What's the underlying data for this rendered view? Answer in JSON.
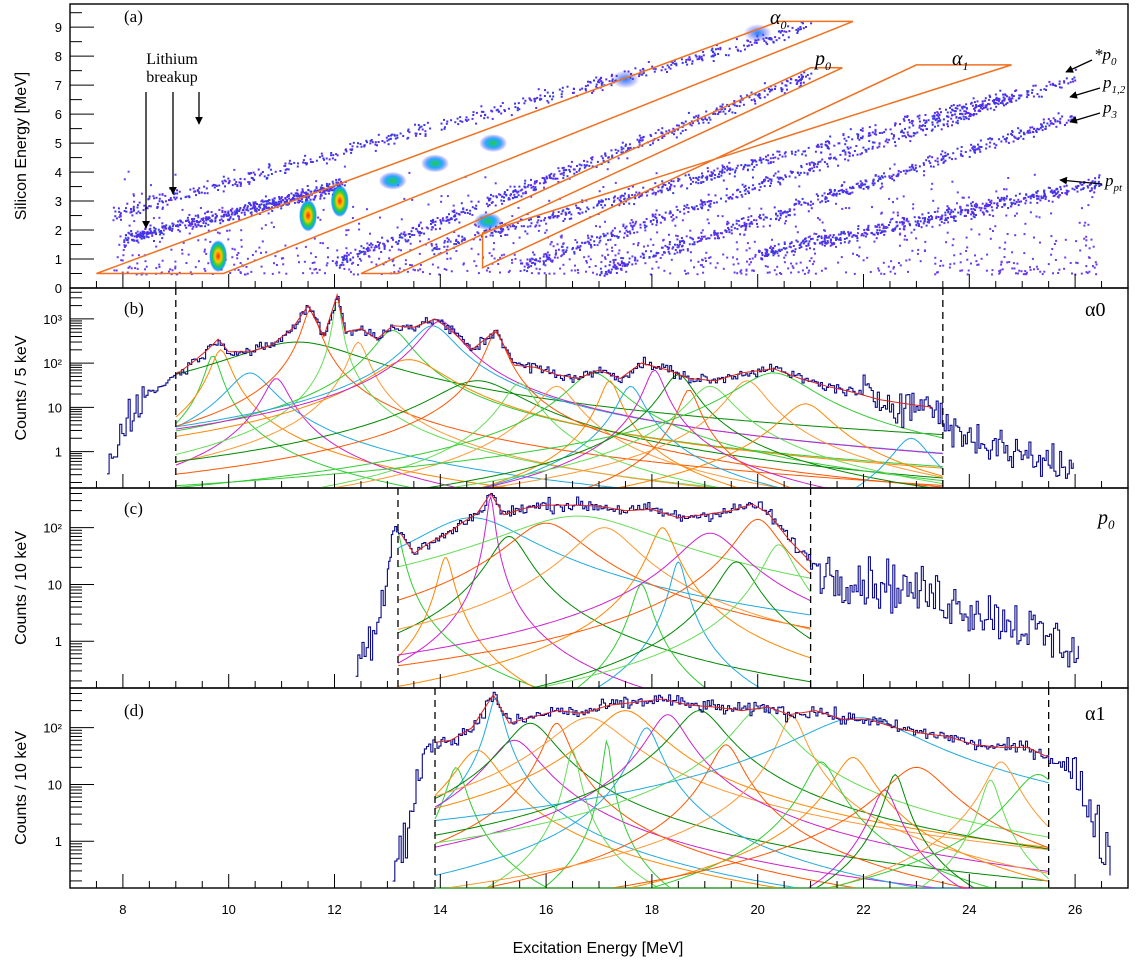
{
  "figure": {
    "xlabel": "Excitation Energy [MeV]",
    "x_ticks": [
      8,
      10,
      12,
      14,
      16,
      18,
      20,
      22,
      24,
      26
    ]
  },
  "chart_data": [
    {
      "type": "heatmap",
      "panel_label": "(a)",
      "xlabel": "Excitation Energy [MeV]",
      "ylabel": "Silicon Energy [MeV]",
      "xlim": [
        7,
        27
      ],
      "ylim": [
        0,
        9.8
      ],
      "y_ticks": [
        0,
        1,
        2,
        3,
        4,
        5,
        6,
        7,
        8,
        9
      ],
      "loci": [
        {
          "name": "Lithium breakup",
          "x_range": [
            8.0,
            12.2
          ],
          "y_at_start": 1.7,
          "slope": 0.45
        },
        {
          "name": "α0",
          "x_range": [
            7.8,
            21.0
          ],
          "y_at_start": 2.6,
          "slope": 0.49
        },
        {
          "name": "p0",
          "x_range": [
            12.0,
            21.0
          ],
          "y_at_start": 0.9,
          "slope": 0.72
        },
        {
          "name": "α1",
          "x_range": [
            13.8,
            24.8
          ],
          "y_at_start": 1.4,
          "slope": 0.48
        },
        {
          "name": "p1,2",
          "x_range": [
            15.5,
            26.0
          ],
          "y_at_start": 0.8,
          "slope": 0.62
        },
        {
          "name": "p3",
          "x_range": [
            17.0,
            26.0
          ],
          "y_at_start": 0.6,
          "slope": 0.6
        },
        {
          "name": "p_pt",
          "x_range": [
            20.0,
            26.5
          ],
          "y_at_start": 1.2,
          "slope": 0.38
        }
      ],
      "hotspots": [
        {
          "x": 9.8,
          "y": 1.1,
          "intensity": "high"
        },
        {
          "x": 11.5,
          "y": 2.5,
          "intensity": "high"
        },
        {
          "x": 12.1,
          "y": 3.0,
          "intensity": "high"
        },
        {
          "x": 13.1,
          "y": 3.7,
          "intensity": "medium"
        },
        {
          "x": 13.9,
          "y": 4.3,
          "intensity": "medium"
        },
        {
          "x": 15.0,
          "y": 5.0,
          "intensity": "medium"
        },
        {
          "x": 14.9,
          "y": 2.3,
          "intensity": "medium"
        },
        {
          "x": 17.5,
          "y": 7.2,
          "intensity": "low"
        },
        {
          "x": 20.0,
          "y": 8.8,
          "intensity": "low"
        }
      ],
      "gates": [
        {
          "name": "α0",
          "polygon": [
            [
              7.5,
              0.5
            ],
            [
              20.4,
              9.2
            ],
            [
              21.8,
              9.2
            ],
            [
              9.9,
              0.5
            ]
          ]
        },
        {
          "name": "p0",
          "polygon": [
            [
              12.5,
              0.5
            ],
            [
              21.0,
              7.6
            ],
            [
              21.6,
              7.6
            ],
            [
              13.2,
              0.5
            ]
          ]
        },
        {
          "name": "α1",
          "polygon": [
            [
              14.8,
              0.7
            ],
            [
              23.0,
              7.7
            ],
            [
              24.8,
              7.7
            ],
            [
              14.8,
              1.9
            ]
          ]
        }
      ],
      "annotations": [
        {
          "text": "Lithium",
          "x": 9.0,
          "y": 8.3
        },
        {
          "text": "breakup",
          "x": 9.0,
          "y": 7.8
        },
        {
          "text": "α",
          "sub": "0",
          "x": 20.0,
          "y": 9.2
        },
        {
          "text": "p",
          "sub": "0",
          "x": 20.6,
          "y": 7.8
        },
        {
          "text": "α",
          "sub": "1",
          "x": 23.4,
          "y": 7.8
        },
        {
          "text": "*p",
          "sub": "0",
          "x": 26.4,
          "y": 8.0
        },
        {
          "text": "p",
          "sub": "1,2",
          "x": 26.4,
          "y": 7.0
        },
        {
          "text": "p",
          "sub": "3",
          "x": 26.4,
          "y": 6.1
        },
        {
          "text": "p",
          "sub": "pt",
          "x": 26.4,
          "y": 3.0
        }
      ]
    },
    {
      "type": "line",
      "panel_label": "(b)",
      "channel": "α0",
      "ylabel": "Counts / 5 keV",
      "xlim": [
        7,
        27
      ],
      "yscale": "log",
      "ylim": [
        0.15,
        5000
      ],
      "y_tick_values": [
        1,
        10,
        100,
        1000
      ],
      "y_tick_labels": [
        "1",
        "10",
        "10²",
        "10³"
      ],
      "fit_range": [
        9.0,
        23.5
      ],
      "data": {
        "x": [
          7.7,
          7.9,
          8.1,
          8.4,
          8.7,
          9.0,
          9.3,
          9.6,
          9.8,
          10.0,
          10.4,
          10.8,
          11.2,
          11.5,
          11.8,
          12.05,
          12.2,
          12.5,
          12.8,
          13.1,
          13.5,
          13.9,
          14.2,
          14.6,
          15.05,
          15.4,
          15.8,
          16.2,
          16.6,
          17.0,
          17.4,
          17.8,
          18.3,
          18.7,
          19.2,
          19.7,
          20.3,
          20.8,
          21.3,
          21.8,
          22.3,
          22.8,
          23.3,
          23.6,
          24.0,
          24.4,
          24.8,
          25.2,
          25.6,
          26.0
        ],
        "y": [
          0.3,
          2,
          8,
          18,
          30,
          55,
          100,
          200,
          350,
          180,
          180,
          250,
          600,
          2000,
          400,
          3500,
          500,
          600,
          350,
          700,
          650,
          1000,
          550,
          200,
          550,
          90,
          80,
          55,
          45,
          70,
          45,
          100,
          70,
          45,
          40,
          60,
          75,
          45,
          30,
          22,
          15,
          12,
          10,
          4,
          2,
          1.5,
          1,
          0.8,
          0.5,
          0.4
        ]
      },
      "components": [
        {
          "center": 9.7,
          "height": 150,
          "width": 0.12
        },
        {
          "center": 9.85,
          "height": 200,
          "width": 0.15
        },
        {
          "center": 10.4,
          "height": 60,
          "width": 0.35
        },
        {
          "center": 10.9,
          "height": 45,
          "width": 0.2
        },
        {
          "center": 11.3,
          "height": 300,
          "width": 1.1
        },
        {
          "center": 11.55,
          "height": 1700,
          "width": 0.12
        },
        {
          "center": 12.05,
          "height": 3200,
          "width": 0.05
        },
        {
          "center": 12.45,
          "height": 300,
          "width": 0.15
        },
        {
          "center": 13.1,
          "height": 550,
          "width": 0.3
        },
        {
          "center": 13.4,
          "height": 120,
          "width": 0.6
        },
        {
          "center": 13.85,
          "height": 700,
          "width": 0.35
        },
        {
          "center": 14.0,
          "height": 900,
          "width": 0.3
        },
        {
          "center": 14.7,
          "height": 40,
          "width": 0.7
        },
        {
          "center": 15.05,
          "height": 500,
          "width": 0.15
        },
        {
          "center": 15.5,
          "height": 35,
          "width": 0.25
        },
        {
          "center": 16.2,
          "height": 30,
          "width": 0.3
        },
        {
          "center": 16.9,
          "height": 60,
          "width": 0.4
        },
        {
          "center": 17.2,
          "height": 40,
          "width": 0.15
        },
        {
          "center": 17.6,
          "height": 30,
          "width": 0.2
        },
        {
          "center": 18.05,
          "height": 70,
          "width": 0.15
        },
        {
          "center": 18.5,
          "height": 55,
          "width": 0.25
        },
        {
          "center": 18.7,
          "height": 25,
          "width": 0.15
        },
        {
          "center": 19.1,
          "height": 30,
          "width": 0.35
        },
        {
          "center": 19.8,
          "height": 40,
          "width": 0.3
        },
        {
          "center": 20.3,
          "height": 60,
          "width": 0.6
        },
        {
          "center": 20.9,
          "height": 12,
          "width": 0.4
        },
        {
          "center": 22.9,
          "height": 2,
          "width": 0.3
        }
      ]
    },
    {
      "type": "line",
      "panel_label": "(c)",
      "channel": "p0",
      "ylabel": "Counts / 10 keV",
      "xlim": [
        7,
        27
      ],
      "yscale": "log",
      "ylim": [
        0.15,
        500
      ],
      "y_tick_values": [
        1,
        10,
        100
      ],
      "y_tick_labels": [
        "1",
        "10",
        "10²"
      ],
      "fit_range": [
        13.2,
        21.0
      ],
      "data": {
        "x": [
          12.4,
          12.6,
          12.8,
          13.0,
          13.1,
          13.25,
          13.5,
          13.8,
          14.1,
          14.4,
          14.7,
          14.95,
          15.2,
          15.6,
          16.0,
          16.5,
          17.0,
          17.5,
          18.0,
          18.5,
          19.0,
          19.5,
          19.9,
          20.2,
          20.6,
          21.0,
          21.4,
          21.9,
          22.4,
          22.9,
          23.4,
          23.9,
          24.4,
          24.9,
          25.4,
          25.9,
          26.1
        ],
        "y": [
          0.3,
          1,
          3,
          15,
          110,
          80,
          35,
          55,
          75,
          120,
          180,
          400,
          170,
          220,
          250,
          250,
          240,
          200,
          210,
          150,
          170,
          200,
          260,
          180,
          60,
          25,
          15,
          12,
          10,
          8,
          6,
          4,
          3,
          2,
          1.2,
          0.8,
          0.5
        ]
      },
      "components": [
        {
          "center": 13.15,
          "height": 110,
          "width": 0.1
        },
        {
          "center": 14.1,
          "height": 30,
          "width": 0.12
        },
        {
          "center": 14.6,
          "height": 150,
          "width": 0.9
        },
        {
          "center": 14.95,
          "height": 350,
          "width": 0.06
        },
        {
          "center": 15.3,
          "height": 70,
          "width": 0.3
        },
        {
          "center": 16.0,
          "height": 120,
          "width": 0.6
        },
        {
          "center": 16.6,
          "height": 160,
          "width": 1.3
        },
        {
          "center": 17.1,
          "height": 100,
          "width": 0.5
        },
        {
          "center": 17.8,
          "height": 10,
          "width": 0.15
        },
        {
          "center": 18.2,
          "height": 100,
          "width": 0.2
        },
        {
          "center": 18.5,
          "height": 25,
          "width": 0.12
        },
        {
          "center": 19.1,
          "height": 80,
          "width": 0.5
        },
        {
          "center": 19.6,
          "height": 25,
          "width": 0.3
        },
        {
          "center": 20.0,
          "height": 140,
          "width": 0.35
        },
        {
          "center": 20.4,
          "height": 50,
          "width": 0.25
        }
      ]
    },
    {
      "type": "line",
      "panel_label": "(d)",
      "channel": "α1",
      "ylabel": "Counts / 10 keV",
      "xlim": [
        7,
        27
      ],
      "yscale": "log",
      "ylim": [
        0.15,
        500
      ],
      "y_tick_values": [
        1,
        10,
        100
      ],
      "y_tick_labels": [
        "1",
        "10",
        "10²"
      ],
      "fit_range": [
        13.9,
        25.5
      ],
      "data": {
        "x": [
          13.1,
          13.3,
          13.5,
          13.7,
          13.9,
          14.2,
          14.6,
          15.0,
          15.3,
          15.7,
          16.2,
          16.7,
          17.2,
          17.7,
          18.2,
          18.7,
          19.2,
          19.7,
          20.2,
          20.6,
          21.1,
          21.6,
          22.1,
          22.6,
          23.1,
          23.6,
          24.1,
          24.6,
          25.1,
          25.5,
          25.8,
          26.1,
          26.3,
          26.5,
          26.7
        ],
        "y": [
          0.3,
          1,
          5,
          40,
          55,
          60,
          100,
          380,
          120,
          150,
          200,
          180,
          250,
          280,
          320,
          250,
          230,
          200,
          230,
          170,
          200,
          140,
          140,
          100,
          80,
          70,
          50,
          45,
          45,
          30,
          20,
          10,
          3,
          1,
          0.4
        ]
      },
      "components": [
        {
          "center": 14.3,
          "height": 20,
          "width": 0.15
        },
        {
          "center": 14.7,
          "height": 40,
          "width": 0.35
        },
        {
          "center": 15.05,
          "height": 340,
          "width": 0.12
        },
        {
          "center": 15.4,
          "height": 60,
          "width": 0.4
        },
        {
          "center": 15.7,
          "height": 120,
          "width": 0.4
        },
        {
          "center": 16.2,
          "height": 120,
          "width": 0.2
        },
        {
          "center": 16.5,
          "height": 40,
          "width": 0.1
        },
        {
          "center": 16.8,
          "height": 150,
          "width": 0.6
        },
        {
          "center": 17.15,
          "height": 60,
          "width": 0.06
        },
        {
          "center": 17.5,
          "height": 200,
          "width": 0.5
        },
        {
          "center": 17.9,
          "height": 100,
          "width": 0.2
        },
        {
          "center": 18.3,
          "height": 170,
          "width": 0.3
        },
        {
          "center": 18.9,
          "height": 200,
          "width": 0.4
        },
        {
          "center": 19.4,
          "height": 50,
          "width": 0.25
        },
        {
          "center": 20.05,
          "height": 220,
          "width": 0.4
        },
        {
          "center": 20.65,
          "height": 160,
          "width": 0.2
        },
        {
          "center": 21.2,
          "height": 25,
          "width": 0.25
        },
        {
          "center": 21.8,
          "height": 30,
          "width": 0.3
        },
        {
          "center": 21.9,
          "height": 150,
          "width": 1.0
        },
        {
          "center": 22.4,
          "height": 8,
          "width": 0.2
        },
        {
          "center": 22.6,
          "height": 15,
          "width": 0.15
        },
        {
          "center": 23.0,
          "height": 20,
          "width": 0.5
        },
        {
          "center": 24.4,
          "height": 12,
          "width": 0.15
        },
        {
          "center": 24.6,
          "height": 25,
          "width": 0.25
        },
        {
          "center": 25.3,
          "height": 15,
          "width": 0.4
        }
      ]
    }
  ]
}
